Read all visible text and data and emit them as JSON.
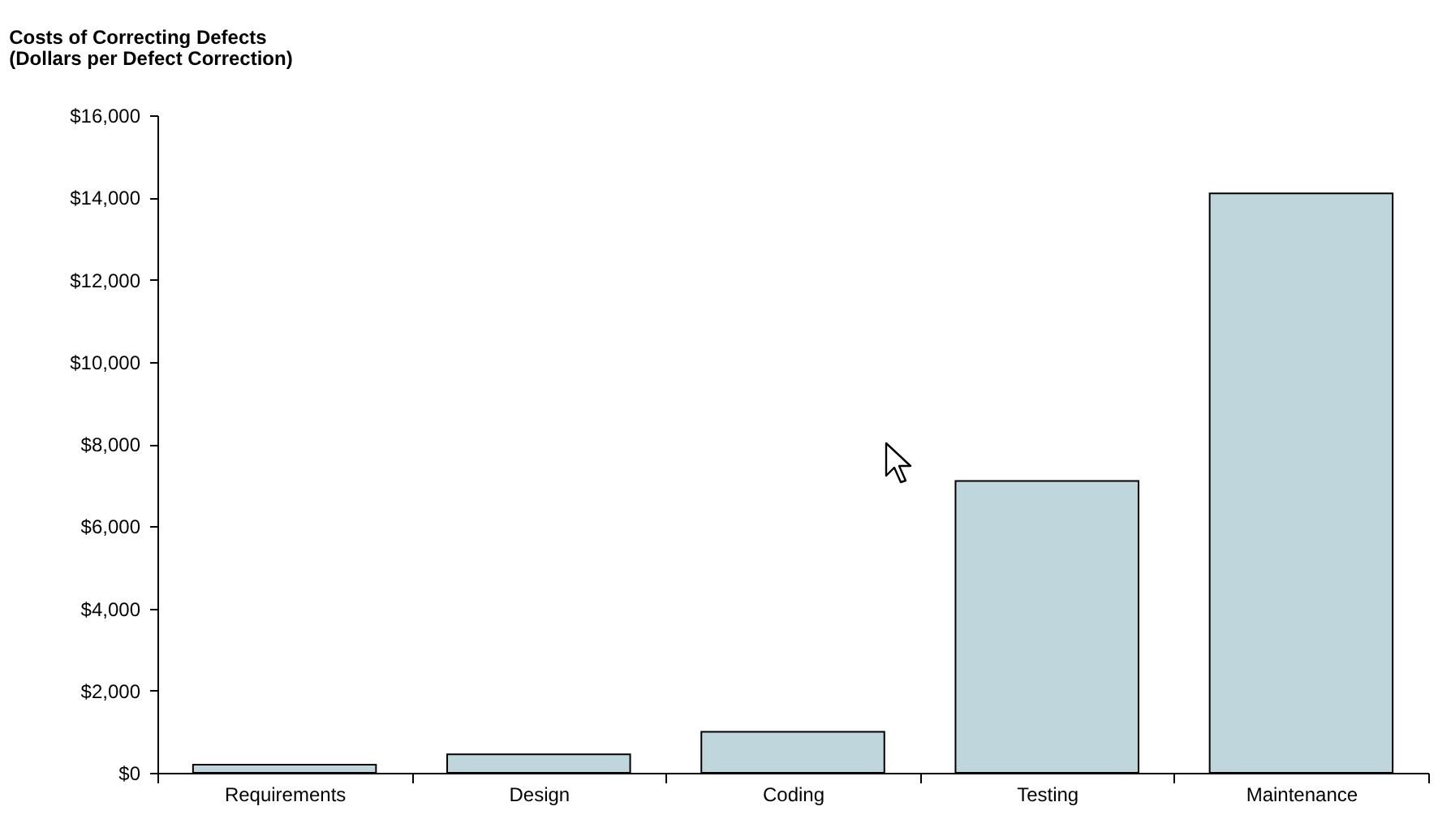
{
  "chart_data": {
    "type": "bar",
    "title": "Costs of Correcting Defects",
    "subtitle": "(Dollars per Defect Correction)",
    "categories": [
      "Requirements",
      "Design",
      "Coding",
      "Testing",
      "Maintenance"
    ],
    "values": [
      200,
      450,
      1000,
      7100,
      14100
    ],
    "color": "#bfd7dc",
    "ylim": [
      0,
      16000
    ],
    "yticks": [
      {
        "value": 0,
        "label": "$0"
      },
      {
        "value": 2000,
        "label": "$2,000"
      },
      {
        "value": 4000,
        "label": "$4,000"
      },
      {
        "value": 6000,
        "label": "$6,000"
      },
      {
        "value": 8000,
        "label": "$8,000"
      },
      {
        "value": 10000,
        "label": "$10,000"
      },
      {
        "value": 12000,
        "label": "$12,000"
      },
      {
        "value": 14000,
        "label": "$14,000"
      },
      {
        "value": 16000,
        "label": "$16,000"
      }
    ],
    "grid": false
  }
}
